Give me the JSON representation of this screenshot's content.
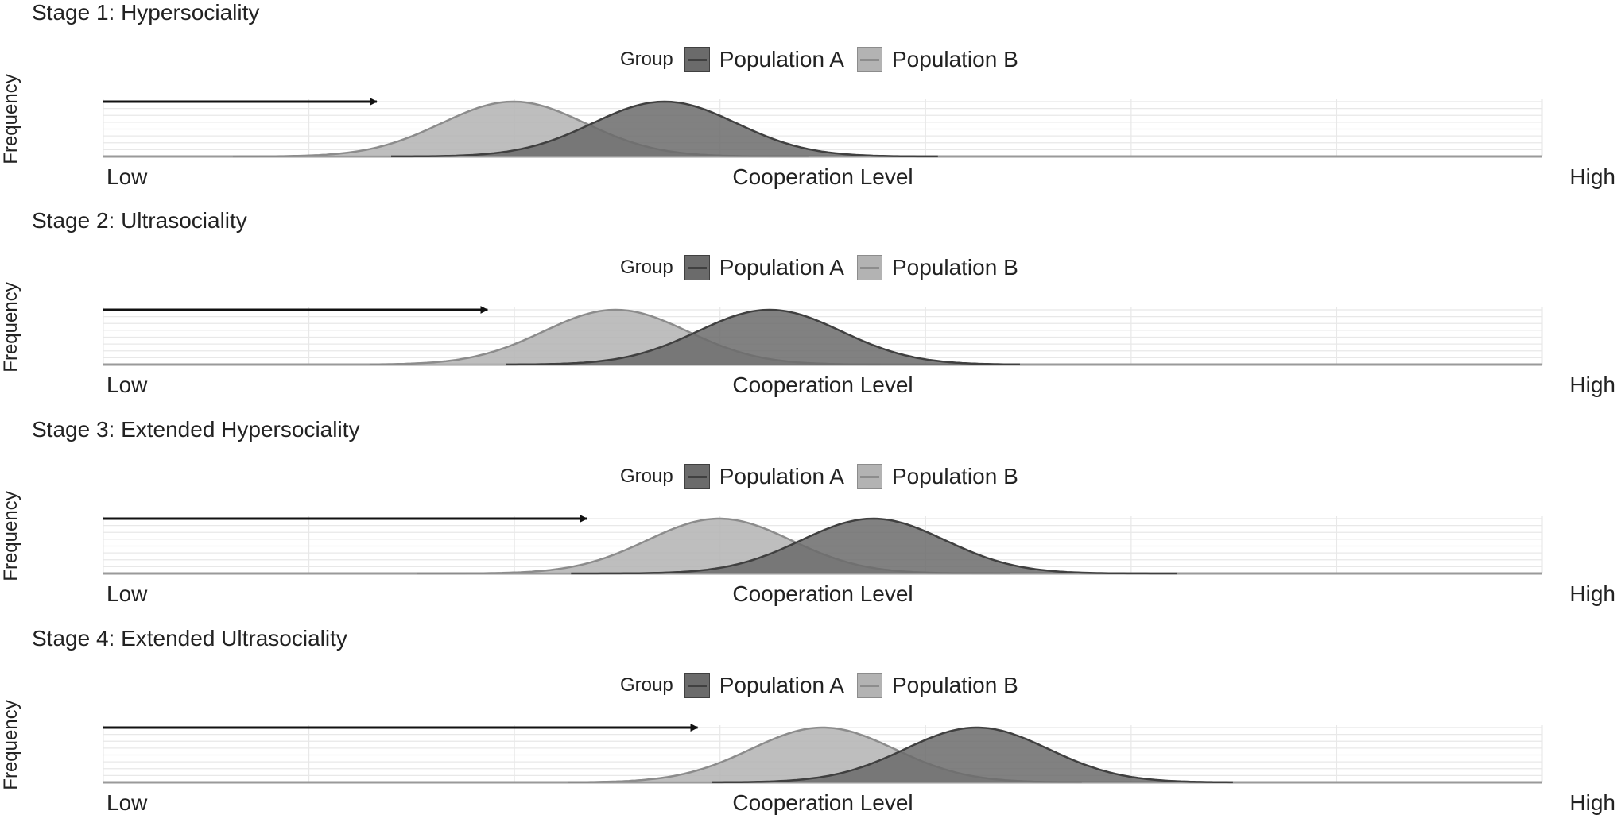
{
  "chart_data": [
    {
      "type": "area",
      "title": "Stage 1: Hypersociality",
      "xlabel": "Cooperation Level",
      "ylabel": "Frequency",
      "x_tick_labels": [
        "Low",
        "High"
      ],
      "legend": {
        "title": "Group",
        "position": "top"
      },
      "xlim": [
        0,
        1
      ],
      "arrow": {
        "from": 0,
        "to": 0.19
      },
      "series": [
        {
          "name": "Population A",
          "mean": 0.39,
          "sd": 0.05,
          "extent": [
            0.2,
            0.58
          ],
          "color": "#6b6b6b",
          "line_color": "#404040"
        },
        {
          "name": "Population B",
          "mean": 0.285,
          "sd": 0.05,
          "extent": [
            0.09,
            0.49
          ],
          "color": "#b3b3b3",
          "line_color": "#8c8c8c"
        }
      ]
    },
    {
      "type": "area",
      "title": "Stage 2: Ultrasociality",
      "xlabel": "Cooperation Level",
      "ylabel": "Frequency",
      "x_tick_labels": [
        "Low",
        "High"
      ],
      "legend": {
        "title": "Group",
        "position": "top"
      },
      "xlim": [
        0,
        1
      ],
      "arrow": {
        "from": 0,
        "to": 0.267
      },
      "series": [
        {
          "name": "Population A",
          "mean": 0.463,
          "sd": 0.05,
          "extent": [
            0.28,
            0.637
          ],
          "color": "#6b6b6b",
          "line_color": "#404040"
        },
        {
          "name": "Population B",
          "mean": 0.356,
          "sd": 0.05,
          "extent": [
            0.185,
            0.54
          ],
          "color": "#b3b3b3",
          "line_color": "#8c8c8c"
        }
      ]
    },
    {
      "type": "area",
      "title": "Stage 3: Extended Hypersociality",
      "xlabel": "Cooperation Level",
      "ylabel": "Frequency",
      "x_tick_labels": [
        "Low",
        "High"
      ],
      "legend": {
        "title": "Group",
        "position": "top"
      },
      "xlim": [
        0,
        1
      ],
      "arrow": {
        "from": 0,
        "to": 0.336
      },
      "series": [
        {
          "name": "Population A",
          "mean": 0.535,
          "sd": 0.05,
          "extent": [
            0.325,
            0.746
          ],
          "color": "#6b6b6b",
          "line_color": "#404040"
        },
        {
          "name": "Population B",
          "mean": 0.428,
          "sd": 0.05,
          "extent": [
            0.218,
            0.63
          ],
          "color": "#b3b3b3",
          "line_color": "#8c8c8c"
        }
      ]
    },
    {
      "type": "area",
      "title": "Stage 4: Extended Ultrasociality",
      "xlabel": "Cooperation Level",
      "ylabel": "Frequency",
      "x_tick_labels": [
        "Low",
        "High"
      ],
      "legend": {
        "title": "Group",
        "position": "top"
      },
      "xlim": [
        0,
        1
      ],
      "arrow": {
        "from": 0,
        "to": 0.413
      },
      "series": [
        {
          "name": "Population A",
          "mean": 0.607,
          "sd": 0.05,
          "extent": [
            0.423,
            0.785
          ],
          "color": "#6b6b6b",
          "line_color": "#404040"
        },
        {
          "name": "Population B",
          "mean": 0.5,
          "sd": 0.05,
          "extent": [
            0.323,
            0.68
          ],
          "color": "#b3b3b3",
          "line_color": "#8c8c8c"
        }
      ]
    }
  ]
}
